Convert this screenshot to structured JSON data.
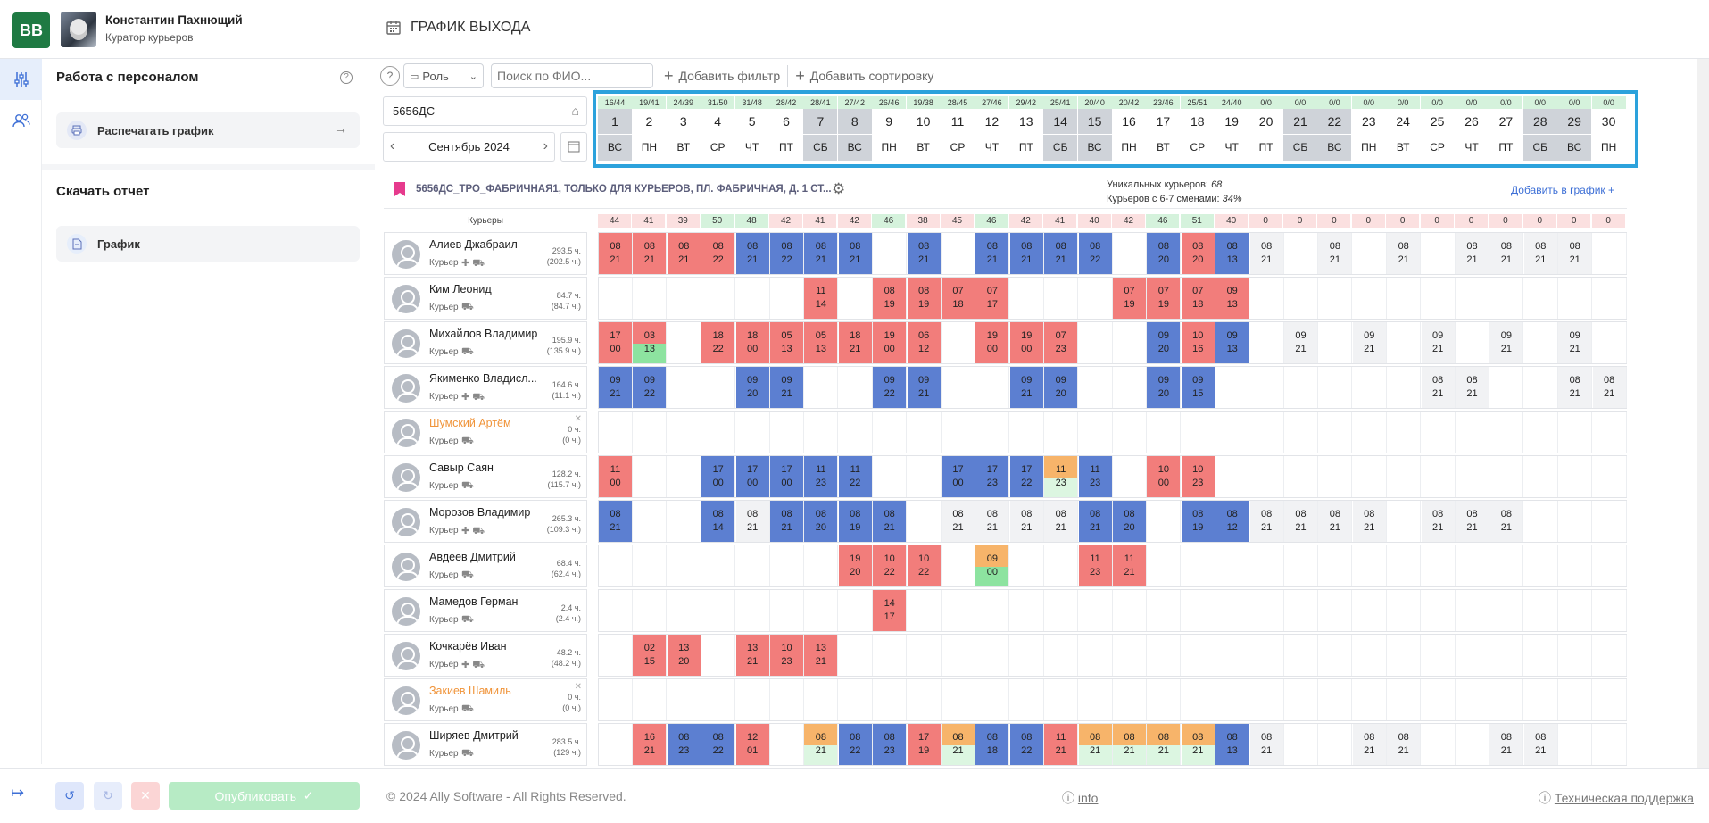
{
  "header": {
    "logo": "BB",
    "user_name": "Константин Пахнющий",
    "user_role": "Куратор курьеров",
    "page_title": "ГРАФИК ВЫХОДА"
  },
  "sidebar": {
    "section1_title": "Работа с персоналом",
    "print_label": "Распечатать график",
    "section2_title": "Скачать отчет",
    "report_label": "График"
  },
  "toolbar": {
    "role_label": "Роль",
    "search_placeholder": "Поиск по ФИО...",
    "add_filter": "Добавить фильтр",
    "add_sort": "Добавить сортировку"
  },
  "store": {
    "code": "5656ДС",
    "month": "Сентябрь 2024"
  },
  "days": [
    {
      "s": "16/44",
      "n": "1",
      "d": "ВС",
      "we": true
    },
    {
      "s": "19/41",
      "n": "2",
      "d": "ПН"
    },
    {
      "s": "24/39",
      "n": "3",
      "d": "ВТ"
    },
    {
      "s": "31/50",
      "n": "4",
      "d": "СР"
    },
    {
      "s": "31/48",
      "n": "5",
      "d": "ЧТ"
    },
    {
      "s": "28/42",
      "n": "6",
      "d": "ПТ"
    },
    {
      "s": "28/41",
      "n": "7",
      "d": "СБ",
      "we": true
    },
    {
      "s": "27/42",
      "n": "8",
      "d": "ВС",
      "we": true
    },
    {
      "s": "26/46",
      "n": "9",
      "d": "ПН"
    },
    {
      "s": "19/38",
      "n": "10",
      "d": "ВТ"
    },
    {
      "s": "28/45",
      "n": "11",
      "d": "СР"
    },
    {
      "s": "27/46",
      "n": "12",
      "d": "ЧТ"
    },
    {
      "s": "29/42",
      "n": "13",
      "d": "ПТ"
    },
    {
      "s": "25/41",
      "n": "14",
      "d": "СБ",
      "we": true
    },
    {
      "s": "20/40",
      "n": "15",
      "d": "ВС",
      "we": true
    },
    {
      "s": "20/42",
      "n": "16",
      "d": "ПН"
    },
    {
      "s": "23/46",
      "n": "17",
      "d": "ВТ"
    },
    {
      "s": "25/51",
      "n": "18",
      "d": "СР"
    },
    {
      "s": "24/40",
      "n": "19",
      "d": "ЧТ"
    },
    {
      "s": "0/0",
      "n": "20",
      "d": "ПТ"
    },
    {
      "s": "0/0",
      "n": "21",
      "d": "СБ",
      "we": true
    },
    {
      "s": "0/0",
      "n": "22",
      "d": "ВС",
      "we": true
    },
    {
      "s": "0/0",
      "n": "23",
      "d": "ПН"
    },
    {
      "s": "0/0",
      "n": "24",
      "d": "ВТ"
    },
    {
      "s": "0/0",
      "n": "25",
      "d": "СР"
    },
    {
      "s": "0/0",
      "n": "26",
      "d": "ЧТ"
    },
    {
      "s": "0/0",
      "n": "27",
      "d": "ПТ"
    },
    {
      "s": "0/0",
      "n": "28",
      "d": "СБ",
      "we": true
    },
    {
      "s": "0/0",
      "n": "29",
      "d": "ВС",
      "we": true
    },
    {
      "s": "0/0",
      "n": "30",
      "d": "ПН"
    }
  ],
  "banner": {
    "title": "5656ДС_ТРО_ФАБРИЧНАЯ1, ТОЛЬКО ДЛЯ КУРЬЕРОВ, ПЛ. ФАБРИЧНАЯ, Д. 1 СТ...",
    "unique_label": "Уникальных курьеров:",
    "unique_value": "68",
    "shifts_label": "Курьеров с 6-7 сменами:",
    "shifts_value": "34%",
    "add_label": "Добавить в график"
  },
  "couriers_header": "Курьеры",
  "counts": [
    "44",
    "41",
    "39",
    "50",
    "48",
    "42",
    "41",
    "42",
    "46",
    "38",
    "45",
    "46",
    "42",
    "41",
    "40",
    "42",
    "46",
    "51",
    "40",
    "0",
    "0",
    "0",
    "0",
    "0",
    "0",
    "0",
    "0",
    "0",
    "0",
    "0"
  ],
  "rows": [
    {
      "name": "Алиев Джабраил",
      "role": "Курьер",
      "h1": "293.5 ч.",
      "h2": "(202.5 ч.)",
      "org": false,
      "cells": [
        "r|08|21",
        "r|08|21",
        "r|08|21",
        "r|08|22",
        "b|08|21",
        "b|08|22",
        "b|08|21",
        "b|08|21",
        "",
        "b|08|21",
        "",
        "b|08|21",
        "b|08|21",
        "b|08|21",
        "b|08|22",
        "",
        "b|08|20",
        "r|08|20",
        "b|08|13",
        "e|08|21",
        "",
        "e|08|21",
        "",
        "g|08|21",
        "",
        "e|08|21",
        "e|08|21",
        "e|08|21",
        "e|08|21",
        ""
      ]
    },
    {
      "name": "Ким Леонид",
      "role": "Курьер",
      "h1": "84.7 ч.",
      "h2": "(84.7 ч.)",
      "org": false,
      "cells": [
        "",
        "",
        "",
        "",
        "",
        "",
        "r|11|14",
        "",
        "r|08|19",
        "r|08|19",
        "r|07|18",
        "r|07|17",
        "",
        "",
        "",
        "r|07|19",
        "r|07|19",
        "r|07|18",
        "r|09|13",
        "",
        "",
        "",
        "",
        "",
        "",
        "",
        "",
        "",
        "",
        ""
      ]
    },
    {
      "name": "Михайлов Владимир",
      "role": "Курьер",
      "h1": "195.9 ч.",
      "h2": "(135.9 ч.)",
      "org": false,
      "cells": [
        "r|17|00",
        "x|03|13",
        "",
        "r|18|22",
        "r|18|00",
        "r|05|13",
        "r|05|13",
        "r|18|21",
        "r|19|00",
        "r|06|12",
        "",
        "r|19|00",
        "r|19|00",
        "r|07|23",
        "",
        "",
        "b|09|20",
        "r|10|16",
        "b|09|13",
        "",
        "e|09|21",
        "",
        "e|09|21",
        "",
        "e|09|21",
        "",
        "e|09|21",
        "",
        "e|09|21",
        ""
      ]
    },
    {
      "name": "Якименко Владисл...",
      "role": "Курьер",
      "h1": "164.6 ч.",
      "h2": "(11.1 ч.)",
      "org": false,
      "cells": [
        "b|09|21",
        "b|09|22",
        "",
        "",
        "b|09|20",
        "b|09|21",
        "",
        "",
        "b|09|22",
        "b|09|21",
        "",
        "",
        "b|09|21",
        "b|09|20",
        "",
        "",
        "b|09|20",
        "b|09|15",
        "",
        "",
        "",
        "",
        "",
        "",
        "g|08|21",
        "g|08|21",
        "",
        "",
        "g|08|21",
        "e|08|21"
      ]
    },
    {
      "name": "Шумский Артём",
      "role": "Курьер",
      "h1": "0 ч.",
      "h2": "(0 ч.)",
      "org": true,
      "cells": [
        "",
        "",
        "",
        "",
        "",
        "",
        "",
        "",
        "",
        "",
        "",
        "",
        "",
        "",
        "",
        "",
        "",
        "",
        "",
        "",
        "",
        "",
        "",
        "",
        "",
        "",
        "",
        "",
        "",
        ""
      ]
    },
    {
      "name": "Савыр Саян",
      "role": "Курьер",
      "h1": "128.2 ч.",
      "h2": "(115.7 ч.)",
      "org": false,
      "cells": [
        "r|11|00",
        "",
        "",
        "b|17|00",
        "b|17|00",
        "b|17|00",
        "b|11|23",
        "b|11|22",
        "",
        "",
        "b|17|00",
        "b|17|23",
        "b|17|22",
        "m|11|23",
        "b|11|23",
        "",
        "r|10|00",
        "r|10|23",
        "",
        "",
        "",
        "",
        "",
        "",
        "",
        "",
        "",
        "",
        "",
        ""
      ]
    },
    {
      "name": "Морозов Владимир",
      "role": "Курьер",
      "h1": "265.3 ч.",
      "h2": "(109.3 ч.)",
      "org": false,
      "cells": [
        "b|08|21",
        "",
        "",
        "b|08|14",
        "e|08|21",
        "b|08|21",
        "b|08|20",
        "b|08|19",
        "b|08|21",
        "",
        "e|08|21",
        "e|08|21",
        "e|08|21",
        "e|08|21",
        "b|08|21",
        "b|08|20",
        "",
        "b|08|19",
        "b|08|12",
        "e|08|21",
        "e|08|21",
        "e|08|21",
        "e|08|21",
        "",
        "e|08|21",
        "e|08|21",
        "e|08|21",
        "",
        "",
        ""
      ]
    },
    {
      "name": "Авдеев Дмитрий",
      "role": "Курьер",
      "h1": "68.4 ч.",
      "h2": "(62.4 ч.)",
      "org": false,
      "cells": [
        "",
        "",
        "",
        "",
        "",
        "",
        "",
        "r|19|20",
        "r|10|22",
        "r|10|22",
        "",
        "mg|09|00",
        "",
        "",
        "r|11|23",
        "r|11|21",
        "",
        "",
        "",
        "",
        "",
        "",
        "",
        "",
        "",
        "",
        "",
        "",
        "",
        ""
      ]
    },
    {
      "name": "Мамедов Герман",
      "role": "Курьер",
      "h1": "2.4 ч.",
      "h2": "(2.4 ч.)",
      "org": false,
      "cells": [
        "",
        "",
        "",
        "",
        "",
        "",
        "",
        "",
        "r|14|17",
        "",
        "",
        "",
        "",
        "",
        "",
        "",
        "",
        "",
        "",
        "",
        "",
        "",
        "",
        "",
        "",
        "",
        "",
        "",
        "",
        ""
      ]
    },
    {
      "name": "Кочкарёв Иван",
      "role": "Курьер",
      "h1": "48.2 ч.",
      "h2": "(48.2 ч.)",
      "org": false,
      "cells": [
        "",
        "r|02|15",
        "r|13|20",
        "",
        "r|13|21",
        "r|10|23",
        "r|13|21",
        "",
        "",
        "",
        "",
        "",
        "",
        "",
        "",
        "",
        "",
        "",
        "",
        "",
        "",
        "",
        "",
        "",
        "",
        "",
        "",
        "",
        "",
        ""
      ]
    },
    {
      "name": "Закиев Шамиль",
      "role": "Курьер",
      "h1": "0 ч.",
      "h2": "(0 ч.)",
      "org": true,
      "cells": [
        "",
        "",
        "",
        "",
        "",
        "",
        "",
        "",
        "",
        "",
        "",
        "",
        "",
        "",
        "",
        "",
        "",
        "",
        "",
        "",
        "",
        "",
        "",
        "",
        "",
        "",
        "",
        "",
        "",
        ""
      ]
    },
    {
      "name": "Ширяев Дмитрий",
      "role": "Курьер",
      "h1": "283.5 ч.",
      "h2": "(129 ч.)",
      "org": false,
      "cells": [
        "",
        "r|16|21",
        "b|08|23",
        "b|08|22",
        "r|12|01",
        "",
        "m|08|21",
        "b|08|22",
        "b|08|23",
        "r|17|19",
        "m|08|21",
        "b|08|18",
        "b|08|22",
        "r|11|21",
        "m|08|21",
        "m|08|21",
        "m|08|21",
        "m|08|21",
        "b|08|13",
        "e|08|21",
        "",
        "",
        "e|08|21",
        "e|08|21",
        "",
        "",
        "e|08|21",
        "e|08|21",
        "",
        ""
      ]
    }
  ],
  "bottom": {
    "publish_label": "Опубликовать",
    "copyright": "© 2024 Ally Software - All Rights Reserved.",
    "info_label": "info",
    "support_label": "Техническая поддержка"
  },
  "colors": {
    "blue": "#5c7fd1",
    "red": "#f27d7b",
    "orange": "#f7b46a",
    "green": "#8de3a0",
    "highlight": "#2ca2dc",
    "brand": "#1f7a43"
  }
}
